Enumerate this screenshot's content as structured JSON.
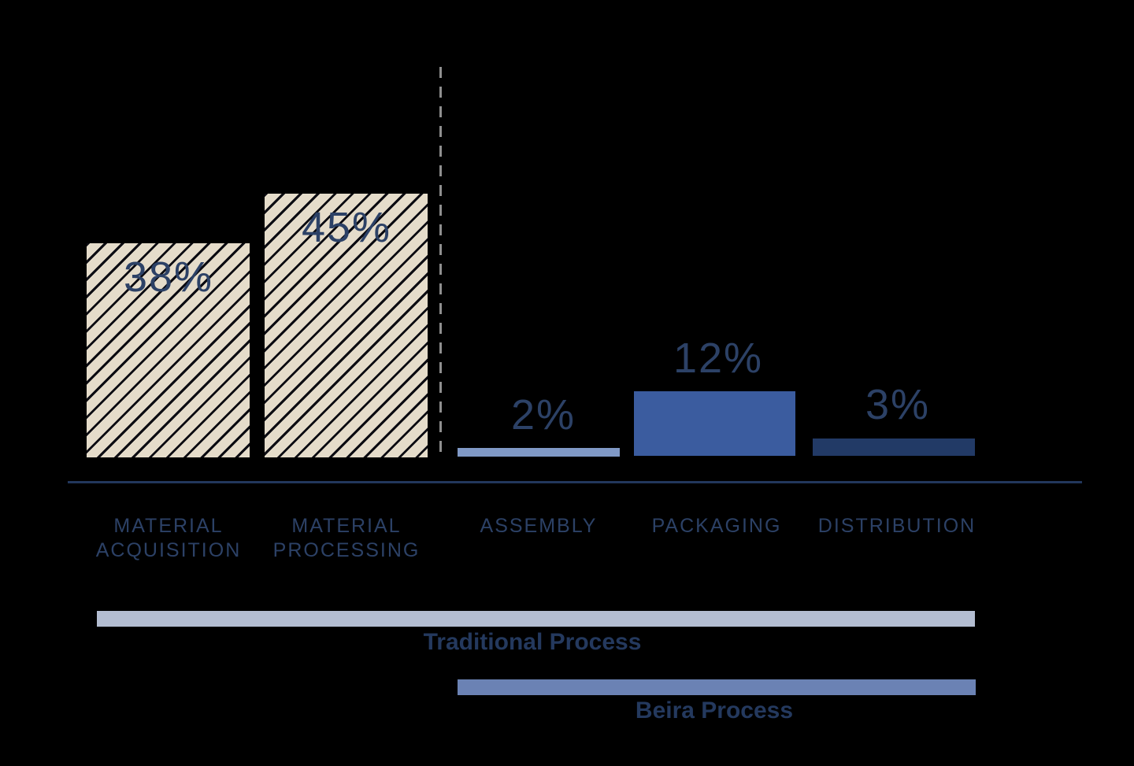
{
  "chart_data": {
    "type": "bar",
    "title": "",
    "xlabel": "",
    "ylabel": "",
    "unit": "%",
    "categories": [
      "MATERIAL ACQUISITION",
      "MATERIAL PROCESSING",
      "ASSEMBLY",
      "PACKAGING",
      "DISTRIBUTION"
    ],
    "values": [
      38,
      45,
      2,
      12,
      3
    ],
    "value_labels": [
      "38%",
      "45%",
      "2%",
      "12%",
      "3%"
    ],
    "bar_styles": [
      "hatched-beige",
      "hatched-beige",
      "light-blue",
      "medium-blue",
      "dark-navy"
    ],
    "ylim": [
      0,
      50
    ],
    "grid": false,
    "legend_position": "none",
    "divider": "dashed vertical line separating MATERIAL PROCESSING from ASSEMBLY",
    "process_spans": [
      {
        "label": "Traditional Process",
        "covers": [
          "MATERIAL ACQUISITION",
          "MATERIAL PROCESSING",
          "ASSEMBLY",
          "PACKAGING",
          "DISTRIBUTION"
        ]
      },
      {
        "label": "Beira Process",
        "covers": [
          "ASSEMBLY",
          "PACKAGING",
          "DISTRIBUTION"
        ]
      }
    ]
  },
  "bars": [
    {
      "value_label": "38%",
      "category_line1": "MATERIAL",
      "category_line2": "ACQUISITION"
    },
    {
      "value_label": "45%",
      "category_line1": "MATERIAL",
      "category_line2": "PROCESSING"
    },
    {
      "value_label": "2%",
      "category_line1": "ASSEMBLY",
      "category_line2": ""
    },
    {
      "value_label": "12%",
      "category_line1": "PACKAGING",
      "category_line2": ""
    },
    {
      "value_label": "3%",
      "category_line1": "DISTRIBUTION",
      "category_line2": ""
    }
  ],
  "process_spans": [
    {
      "label": "Traditional Process"
    },
    {
      "label": "Beira Process"
    }
  ],
  "colors": {
    "background": "#000000",
    "hatch_fill": "#e5dcca",
    "hatch_stripe": "#0c0c12",
    "bar_assembly": "#8099c6",
    "bar_packaging": "#3b5c9f",
    "bar_distribution": "#223a66",
    "traditional_span_bar": "#b3bdd1",
    "beira_span_bar": "#6b82b4",
    "value_label_text": "#2c4166",
    "category_label_text": "#2c4166",
    "process_label_text": "#24395e",
    "axis_line": "#22375c",
    "divider_line": "#8f8f8f"
  }
}
